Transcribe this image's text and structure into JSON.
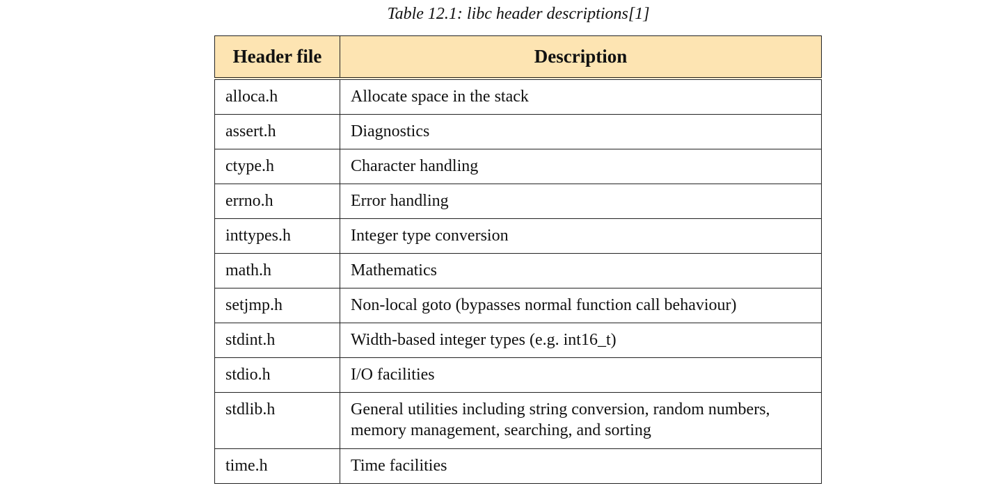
{
  "caption": "Table 12.1: libc header descriptions[1]",
  "header_fill_color": "#fde4b2",
  "columns": [
    "Header file",
    "Description"
  ],
  "rows": [
    {
      "header": "alloca.h",
      "description": "Allocate space in the stack"
    },
    {
      "header": "assert.h",
      "description": "Diagnostics"
    },
    {
      "header": "ctype.h",
      "description": "Character handling"
    },
    {
      "header": "errno.h",
      "description": "Error handling"
    },
    {
      "header": "inttypes.h",
      "description": "Integer type conversion"
    },
    {
      "header": "math.h",
      "description": "Mathematics"
    },
    {
      "header": "setjmp.h",
      "description": "Non-local goto (bypasses normal function call behaviour)"
    },
    {
      "header": "stdint.h",
      "description": "Width-based integer types (e.g. int16_t)"
    },
    {
      "header": "stdio.h",
      "description": "I/O facilities"
    },
    {
      "header": "stdlib.h",
      "description": "General utilities including string conversion, random numbers, memory management, searching, and sorting"
    },
    {
      "header": "time.h",
      "description": "Time facilities"
    }
  ]
}
